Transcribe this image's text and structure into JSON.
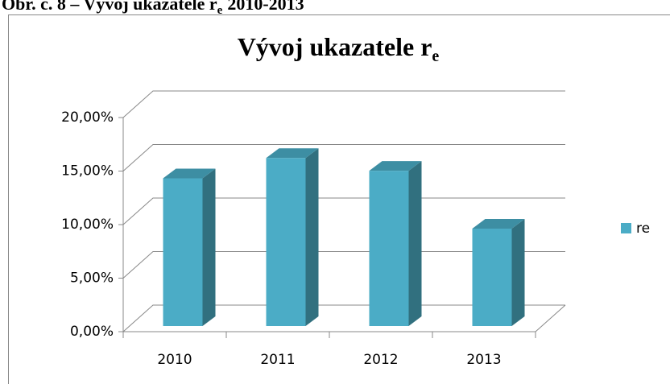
{
  "caption": {
    "text": "Obr. č. 8 – Vývoj ukazatele r",
    "subscript": "e",
    "end": "2010-2013"
  },
  "chart_data": {
    "type": "bar3d",
    "title": "Vývoj ukazatele r",
    "title_subscript": "e",
    "categories": [
      "2010",
      "2011",
      "2012",
      "2013"
    ],
    "series": [
      {
        "name": "re",
        "color": "#4bacc6",
        "values": [
          13.8,
          15.7,
          14.5,
          9.1
        ]
      }
    ],
    "ylim": [
      0,
      20
    ],
    "yticks": [
      {
        "value": 0,
        "label": "0,00%"
      },
      {
        "value": 5,
        "label": "5,00%"
      },
      {
        "value": 10,
        "label": "10,00%"
      },
      {
        "value": 15,
        "label": "15,00%"
      },
      {
        "value": 20,
        "label": "20,00%"
      }
    ],
    "grid": true,
    "legend": "right"
  }
}
